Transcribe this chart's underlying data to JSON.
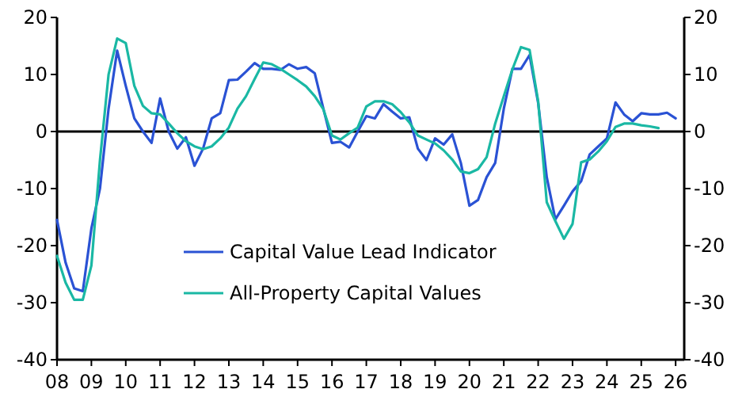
{
  "chart_data": {
    "type": "line",
    "x": [
      2008.0,
      2008.25,
      2008.5,
      2008.75,
      2009.0,
      2009.25,
      2009.5,
      2009.75,
      2010.0,
      2010.25,
      2010.5,
      2010.75,
      2011.0,
      2011.25,
      2011.5,
      2011.75,
      2012.0,
      2012.25,
      2012.5,
      2012.75,
      2013.0,
      2013.25,
      2013.5,
      2013.75,
      2014.0,
      2014.25,
      2014.5,
      2014.75,
      2015.0,
      2015.25,
      2015.5,
      2015.75,
      2016.0,
      2016.25,
      2016.5,
      2016.75,
      2017.0,
      2017.25,
      2017.5,
      2017.75,
      2018.0,
      2018.25,
      2018.5,
      2018.75,
      2019.0,
      2019.25,
      2019.5,
      2019.75,
      2020.0,
      2020.25,
      2020.5,
      2020.75,
      2021.0,
      2021.25,
      2021.5,
      2021.75,
      2022.0,
      2022.25,
      2022.5,
      2022.75,
      2023.0,
      2023.25,
      2023.5,
      2023.75,
      2024.0,
      2024.25,
      2024.5,
      2024.75,
      2025.0,
      2025.25,
      2025.5,
      2025.75,
      2026.0
    ],
    "series": [
      {
        "name": "Capital Value Lead Indicator",
        "color": "#2a52d4",
        "values": [
          -15.5,
          -23,
          -27.5,
          -28,
          -17,
          -10,
          4,
          14.2,
          8,
          2.3,
          0,
          -2,
          5.8,
          0,
          -3,
          -1,
          -6,
          -3,
          2.3,
          3.2,
          9,
          9.1,
          10.5,
          12,
          11,
          11,
          10.8,
          11.8,
          11,
          11.3,
          10.2,
          4,
          -2,
          -1.8,
          -2.8,
          0,
          2.7,
          2.3,
          4.8,
          3.5,
          2.3,
          2.5,
          -3,
          -5,
          -1.2,
          -2.3,
          -0.5,
          -5.5,
          -13,
          -12,
          -8,
          -5.5,
          4,
          11,
          11,
          13.4,
          5,
          -8,
          -15.4,
          -13,
          -10.5,
          -8.7,
          -4,
          -2.6,
          -1.2,
          5.1,
          3,
          1.8,
          3.2,
          3,
          3,
          3.3,
          2.3
        ]
      },
      {
        "name": "All-Property Capital Values",
        "color": "#1ab8a4",
        "values": [
          -21.8,
          -26.5,
          -29.5,
          -29.5,
          -23.5,
          -5,
          10,
          16.3,
          15.5,
          8,
          4.5,
          3.2,
          3,
          1.4,
          -0.3,
          -1.7,
          -2.6,
          -3.1,
          -2.6,
          -1.2,
          0.7,
          4,
          6.2,
          9.2,
          12.1,
          11.8,
          11,
          10,
          9,
          7.9,
          6.2,
          3.9,
          -0.7,
          -1.4,
          -0.3,
          0.7,
          4.4,
          5.3,
          5.3,
          4.8,
          3.4,
          1.6,
          -0.7,
          -1.4,
          -2.1,
          -3.3,
          -4.9,
          -7,
          -7.3,
          -6.6,
          -4.5,
          1.4,
          6.2,
          10.9,
          14.8,
          14.3,
          5.3,
          -12.4,
          -15.7,
          -18.8,
          -16.2,
          -5.4,
          -4.9,
          -3.5,
          -1.7,
          0.8,
          1.4,
          1.4,
          1.1,
          0.9,
          0.6,
          null,
          null
        ]
      }
    ],
    "xlim": [
      2008,
      2026.25
    ],
    "xticks": [
      {
        "value": 2008,
        "label": "08"
      },
      {
        "value": 2009,
        "label": "09"
      },
      {
        "value": 2010,
        "label": "10"
      },
      {
        "value": 2011,
        "label": "11"
      },
      {
        "value": 2012,
        "label": "12"
      },
      {
        "value": 2013,
        "label": "13"
      },
      {
        "value": 2014,
        "label": "14"
      },
      {
        "value": 2015,
        "label": "15"
      },
      {
        "value": 2016,
        "label": "16"
      },
      {
        "value": 2017,
        "label": "17"
      },
      {
        "value": 2018,
        "label": "18"
      },
      {
        "value": 2019,
        "label": "19"
      },
      {
        "value": 2020,
        "label": "20"
      },
      {
        "value": 2021,
        "label": "21"
      },
      {
        "value": 2022,
        "label": "22"
      },
      {
        "value": 2023,
        "label": "23"
      },
      {
        "value": 2024,
        "label": "24"
      },
      {
        "value": 2025,
        "label": "25"
      },
      {
        "value": 2026,
        "label": "26"
      }
    ],
    "ylim": [
      -40,
      20
    ],
    "yticks": [
      -40,
      -30,
      -20,
      -10,
      0,
      10,
      20
    ],
    "y2lim": [
      -40,
      20
    ],
    "y2ticks": [
      -40,
      -30,
      -20,
      -10,
      0,
      10,
      20
    ],
    "ref_lines": [
      {
        "axis": "y",
        "value": 0,
        "color": "#000000"
      }
    ],
    "legend": "bottom left",
    "grid": false
  }
}
